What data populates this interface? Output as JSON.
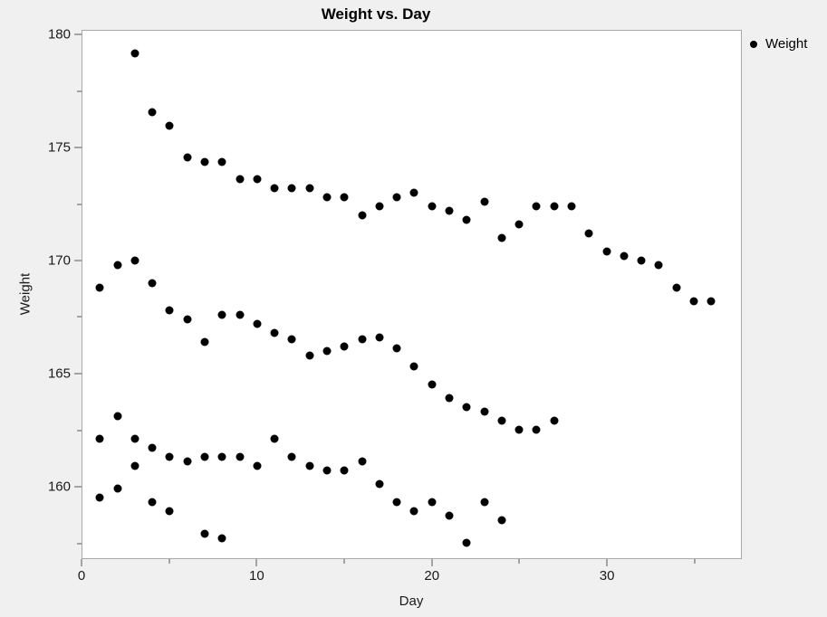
{
  "window": {
    "background_color": "#f0f0f0",
    "plot_background_color": "#ffffff",
    "plot_border_color": "#a9a9a9",
    "tick_color": "#595959",
    "text_color": "#1a1a1a",
    "marker_color": "#000000"
  },
  "legend": {
    "marker_icon": "filled-circle",
    "label": "Weight"
  },
  "chart_data": {
    "type": "scatter",
    "title": "Weight vs. Day",
    "xlabel": "Day",
    "ylabel": "Weight",
    "xlim": [
      0,
      37.7
    ],
    "ylim": [
      156.8,
      180.2
    ],
    "x_major_ticks": [
      0,
      10,
      20,
      30
    ],
    "x_minor_ticks": [
      5,
      15,
      25,
      35
    ],
    "y_major_ticks": [
      160,
      165,
      170,
      175,
      180
    ],
    "y_minor_ticks": [
      157.5,
      162.5,
      167.5,
      172.5,
      177.5
    ],
    "grid": false,
    "legend_position": "top-right-outside",
    "series": [
      {
        "name": "Weight",
        "marker": "filled-circle",
        "color": "#000000",
        "points": [
          [
            3,
            179.2
          ],
          [
            4,
            176.6
          ],
          [
            5,
            176.0
          ],
          [
            6,
            174.6
          ],
          [
            7,
            174.4
          ],
          [
            8,
            174.4
          ],
          [
            9,
            173.6
          ],
          [
            10,
            173.6
          ],
          [
            11,
            173.2
          ],
          [
            12,
            173.2
          ],
          [
            13,
            173.2
          ],
          [
            14,
            172.8
          ],
          [
            15,
            172.8
          ],
          [
            16,
            172.0
          ],
          [
            17,
            172.4
          ],
          [
            18,
            172.8
          ],
          [
            19,
            173.0
          ],
          [
            20,
            172.4
          ],
          [
            21,
            172.2
          ],
          [
            22,
            171.8
          ],
          [
            23,
            172.6
          ],
          [
            24,
            171.0
          ],
          [
            25,
            171.6
          ],
          [
            26,
            172.4
          ],
          [
            27,
            172.4
          ],
          [
            28,
            172.4
          ],
          [
            29,
            171.2
          ],
          [
            30,
            170.4
          ],
          [
            31,
            170.2
          ],
          [
            32,
            170.0
          ],
          [
            33,
            169.8
          ],
          [
            34,
            168.8
          ],
          [
            35,
            168.2
          ],
          [
            36,
            168.2
          ],
          [
            1,
            168.8
          ],
          [
            2,
            169.8
          ],
          [
            3,
            170.0
          ],
          [
            4,
            169.0
          ],
          [
            5,
            167.8
          ],
          [
            6,
            167.4
          ],
          [
            7,
            166.4
          ],
          [
            8,
            167.6
          ],
          [
            9,
            167.6
          ],
          [
            10,
            167.2
          ],
          [
            11,
            166.8
          ],
          [
            12,
            166.5
          ],
          [
            13,
            165.8
          ],
          [
            14,
            166.0
          ],
          [
            15,
            166.2
          ],
          [
            16,
            166.5
          ],
          [
            17,
            166.6
          ],
          [
            18,
            166.1
          ],
          [
            19,
            165.3
          ],
          [
            20,
            164.5
          ],
          [
            21,
            163.9
          ],
          [
            22,
            163.5
          ],
          [
            23,
            163.3
          ],
          [
            24,
            162.9
          ],
          [
            25,
            162.5
          ],
          [
            26,
            162.5
          ],
          [
            27,
            162.9
          ],
          [
            1,
            162.1
          ],
          [
            2,
            163.1
          ],
          [
            3,
            162.1
          ],
          [
            4,
            161.7
          ],
          [
            5,
            161.3
          ],
          [
            6,
            161.1
          ],
          [
            7,
            161.3
          ],
          [
            8,
            161.3
          ],
          [
            9,
            161.3
          ],
          [
            10,
            160.9
          ],
          [
            11,
            162.1
          ],
          [
            12,
            161.3
          ],
          [
            13,
            160.9
          ],
          [
            14,
            160.7
          ],
          [
            15,
            160.7
          ],
          [
            16,
            161.1
          ],
          [
            17,
            160.1
          ],
          [
            18,
            159.3
          ],
          [
            19,
            158.9
          ],
          [
            20,
            159.3
          ],
          [
            21,
            158.7
          ],
          [
            22,
            157.5
          ],
          [
            23,
            159.3
          ],
          [
            24,
            158.5
          ],
          [
            1,
            159.5
          ],
          [
            2,
            159.9
          ],
          [
            3,
            160.9
          ],
          [
            4,
            159.3
          ],
          [
            5,
            158.9
          ],
          [
            7,
            157.9
          ],
          [
            8,
            157.7
          ]
        ]
      }
    ]
  }
}
